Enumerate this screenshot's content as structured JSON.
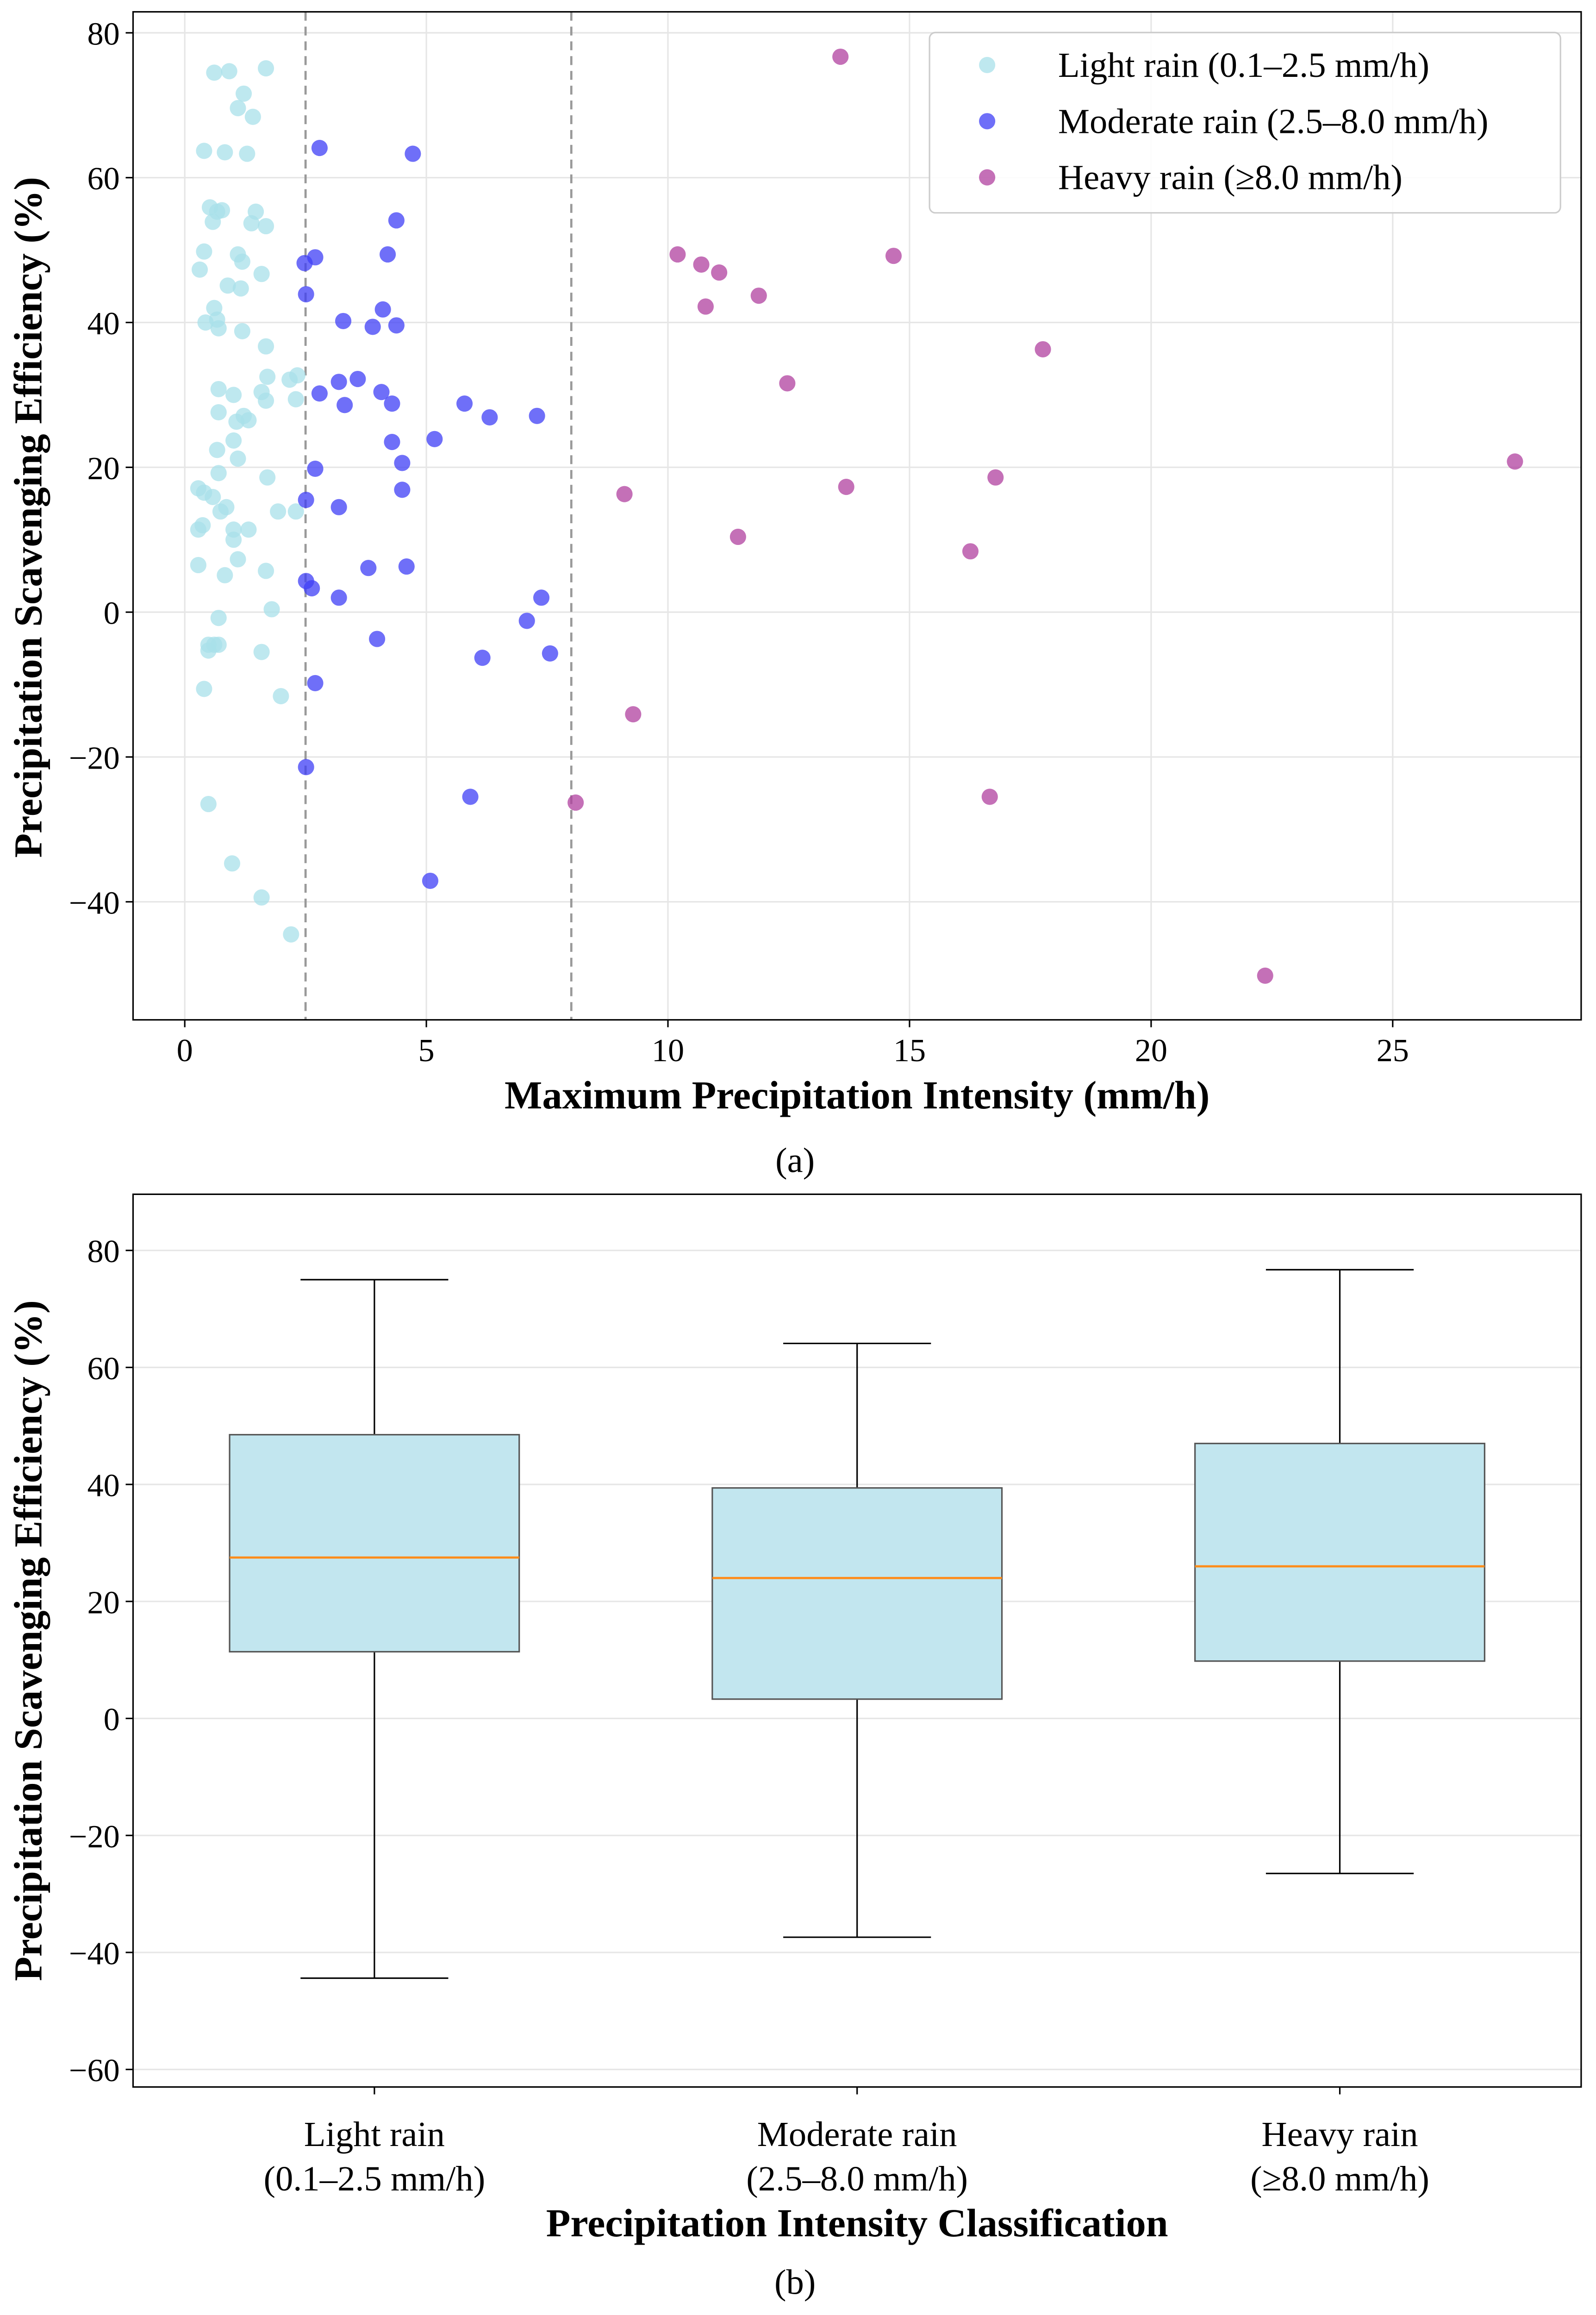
{
  "chart_data": [
    {
      "type": "scatter",
      "panel_label": "a",
      "xlabel": "Maximum Precipitation Intensity (mm/h)",
      "ylabel": "Precipitation Scavenging Efficiency (%)",
      "xlim": [
        -1.07,
        28.9
      ],
      "ylim": [
        -56.3,
        82.9
      ],
      "xticks": [
        0,
        5,
        10,
        15,
        20,
        25
      ],
      "yticks": [
        -40,
        -20,
        0,
        20,
        40,
        60,
        80
      ],
      "grid": true,
      "legend_position": "top-right",
      "threshold_lines": [
        2.5,
        8.0
      ],
      "series": [
        {
          "name": "Light rain (0.1–2.5 mm/h)",
          "color": "#a8e0ea",
          "points": [
            [
              0.61,
              74.5
            ],
            [
              0.92,
              74.7
            ],
            [
              1.68,
              75.1
            ],
            [
              1.22,
              71.6
            ],
            [
              1.1,
              69.6
            ],
            [
              1.41,
              68.4
            ],
            [
              0.4,
              63.7
            ],
            [
              0.83,
              63.5
            ],
            [
              1.29,
              63.3
            ],
            [
              0.52,
              55.9
            ],
            [
              0.77,
              55.5
            ],
            [
              0.67,
              55.3
            ],
            [
              1.47,
              55.3
            ],
            [
              0.58,
              53.9
            ],
            [
              1.38,
              53.7
            ],
            [
              1.68,
              53.3
            ],
            [
              0.4,
              49.8
            ],
            [
              1.1,
              49.4
            ],
            [
              0.31,
              47.3
            ],
            [
              1.19,
              48.4
            ],
            [
              1.59,
              46.7
            ],
            [
              0.89,
              45.1
            ],
            [
              1.16,
              44.7
            ],
            [
              0.61,
              42.0
            ],
            [
              0.67,
              40.4
            ],
            [
              0.43,
              40.0
            ],
            [
              0.7,
              39.2
            ],
            [
              1.19,
              38.8
            ],
            [
              1.68,
              36.7
            ],
            [
              2.33,
              32.7
            ],
            [
              1.71,
              32.5
            ],
            [
              2.17,
              32.1
            ],
            [
              0.7,
              30.8
            ],
            [
              1.59,
              30.4
            ],
            [
              1.01,
              30.0
            ],
            [
              2.3,
              29.4
            ],
            [
              1.68,
              29.2
            ],
            [
              0.7,
              27.6
            ],
            [
              1.22,
              27.1
            ],
            [
              1.32,
              26.5
            ],
            [
              1.07,
              26.3
            ],
            [
              1.01,
              23.7
            ],
            [
              0.67,
              22.4
            ],
            [
              1.1,
              21.2
            ],
            [
              0.7,
              19.2
            ],
            [
              1.71,
              18.6
            ],
            [
              0.28,
              17.1
            ],
            [
              0.4,
              16.5
            ],
            [
              0.58,
              15.9
            ],
            [
              0.86,
              14.5
            ],
            [
              0.74,
              13.9
            ],
            [
              1.93,
              13.9
            ],
            [
              2.3,
              13.9
            ],
            [
              0.37,
              12.0
            ],
            [
              0.28,
              11.4
            ],
            [
              1.01,
              11.4
            ],
            [
              1.32,
              11.4
            ],
            [
              1.01,
              10.0
            ],
            [
              1.1,
              7.3
            ],
            [
              0.28,
              6.5
            ],
            [
              1.68,
              5.7
            ],
            [
              0.83,
              5.1
            ],
            [
              1.8,
              0.4
            ],
            [
              0.7,
              -0.8
            ],
            [
              0.61,
              -4.5
            ],
            [
              0.49,
              -4.5
            ],
            [
              0.7,
              -4.5
            ],
            [
              0.49,
              -5.3
            ],
            [
              1.59,
              -5.5
            ],
            [
              0.4,
              -10.6
            ],
            [
              1.99,
              -11.6
            ],
            [
              0.49,
              -26.5
            ],
            [
              0.98,
              -34.7
            ],
            [
              1.59,
              -39.4
            ],
            [
              2.2,
              -44.5
            ]
          ]
        },
        {
          "name": "Moderate rain (2.5–8.0 mm/h)",
          "color": "#3f3ff5",
          "points": [
            [
              2.79,
              64.1
            ],
            [
              4.72,
              63.3
            ],
            [
              4.38,
              54.1
            ],
            [
              4.2,
              49.4
            ],
            [
              2.48,
              48.2
            ],
            [
              2.7,
              49.0
            ],
            [
              2.51,
              43.9
            ],
            [
              3.28,
              40.2
            ],
            [
              4.1,
              41.8
            ],
            [
              3.89,
              39.4
            ],
            [
              4.38,
              39.6
            ],
            [
              3.58,
              32.2
            ],
            [
              3.19,
              31.8
            ],
            [
              2.79,
              30.2
            ],
            [
              4.07,
              30.4
            ],
            [
              3.31,
              28.6
            ],
            [
              4.29,
              28.8
            ],
            [
              5.79,
              28.8
            ],
            [
              6.31,
              26.9
            ],
            [
              7.29,
              27.1
            ],
            [
              5.17,
              23.9
            ],
            [
              4.29,
              23.5
            ],
            [
              4.5,
              20.6
            ],
            [
              2.7,
              19.8
            ],
            [
              4.5,
              16.9
            ],
            [
              2.51,
              15.5
            ],
            [
              3.19,
              14.5
            ],
            [
              3.8,
              6.1
            ],
            [
              4.59,
              6.3
            ],
            [
              2.51,
              4.3
            ],
            [
              2.63,
              3.3
            ],
            [
              3.19,
              2.0
            ],
            [
              7.38,
              2.0
            ],
            [
              7.08,
              -1.2
            ],
            [
              3.98,
              -3.7
            ],
            [
              7.56,
              -5.7
            ],
            [
              6.16,
              -6.3
            ],
            [
              2.7,
              -9.8
            ],
            [
              2.51,
              -21.4
            ],
            [
              5.91,
              -25.5
            ],
            [
              5.08,
              -37.1
            ]
          ]
        },
        {
          "name": "Heavy rain (≥8.0 mm/h)",
          "color": "#b0409f",
          "points": [
            [
              13.57,
              76.7
            ],
            [
              10.2,
              49.4
            ],
            [
              10.69,
              48.0
            ],
            [
              11.06,
              46.9
            ],
            [
              14.67,
              49.2
            ],
            [
              10.78,
              42.2
            ],
            [
              11.88,
              43.7
            ],
            [
              12.47,
              31.6
            ],
            [
              17.76,
              36.3
            ],
            [
              9.1,
              16.3
            ],
            [
              13.69,
              17.3
            ],
            [
              16.78,
              18.6
            ],
            [
              27.53,
              20.8
            ],
            [
              11.45,
              10.4
            ],
            [
              16.26,
              8.4
            ],
            [
              9.28,
              -14.1
            ],
            [
              8.09,
              -26.3
            ],
            [
              16.66,
              -25.5
            ],
            [
              22.36,
              -50.2
            ]
          ]
        }
      ]
    },
    {
      "type": "box",
      "panel_label": "b",
      "xlabel": "Precipitation Intensity Classification",
      "ylabel": "Precipitation Scavenging Efficiency (%)",
      "ylim": [
        -63,
        89.6
      ],
      "yticks": [
        -60,
        -40,
        -20,
        0,
        20,
        40,
        60,
        80
      ],
      "grid": true,
      "box_color": "#c2e6ef",
      "median_color": "#ff8c1a",
      "categories": [
        {
          "line1": "Light rain",
          "line2": "(0.1–2.5 mm/h)",
          "whisker_low": -44.4,
          "q1": 11.4,
          "median": 27.5,
          "q3": 48.5,
          "whisker_high": 75.0
        },
        {
          "line1": "Moderate rain",
          "line2": "(2.5–8.0 mm/h)",
          "whisker_low": -37.4,
          "q1": 3.3,
          "median": 24.0,
          "q3": 39.4,
          "whisker_high": 64.1
        },
        {
          "line1": "Heavy rain",
          "line2": "(≥8.0 mm/h)",
          "whisker_low": -26.5,
          "q1": 9.8,
          "median": 26.0,
          "q3": 47.0,
          "whisker_high": 76.7
        }
      ]
    }
  ],
  "captions": {
    "a": "(a)",
    "b": "(b)"
  }
}
